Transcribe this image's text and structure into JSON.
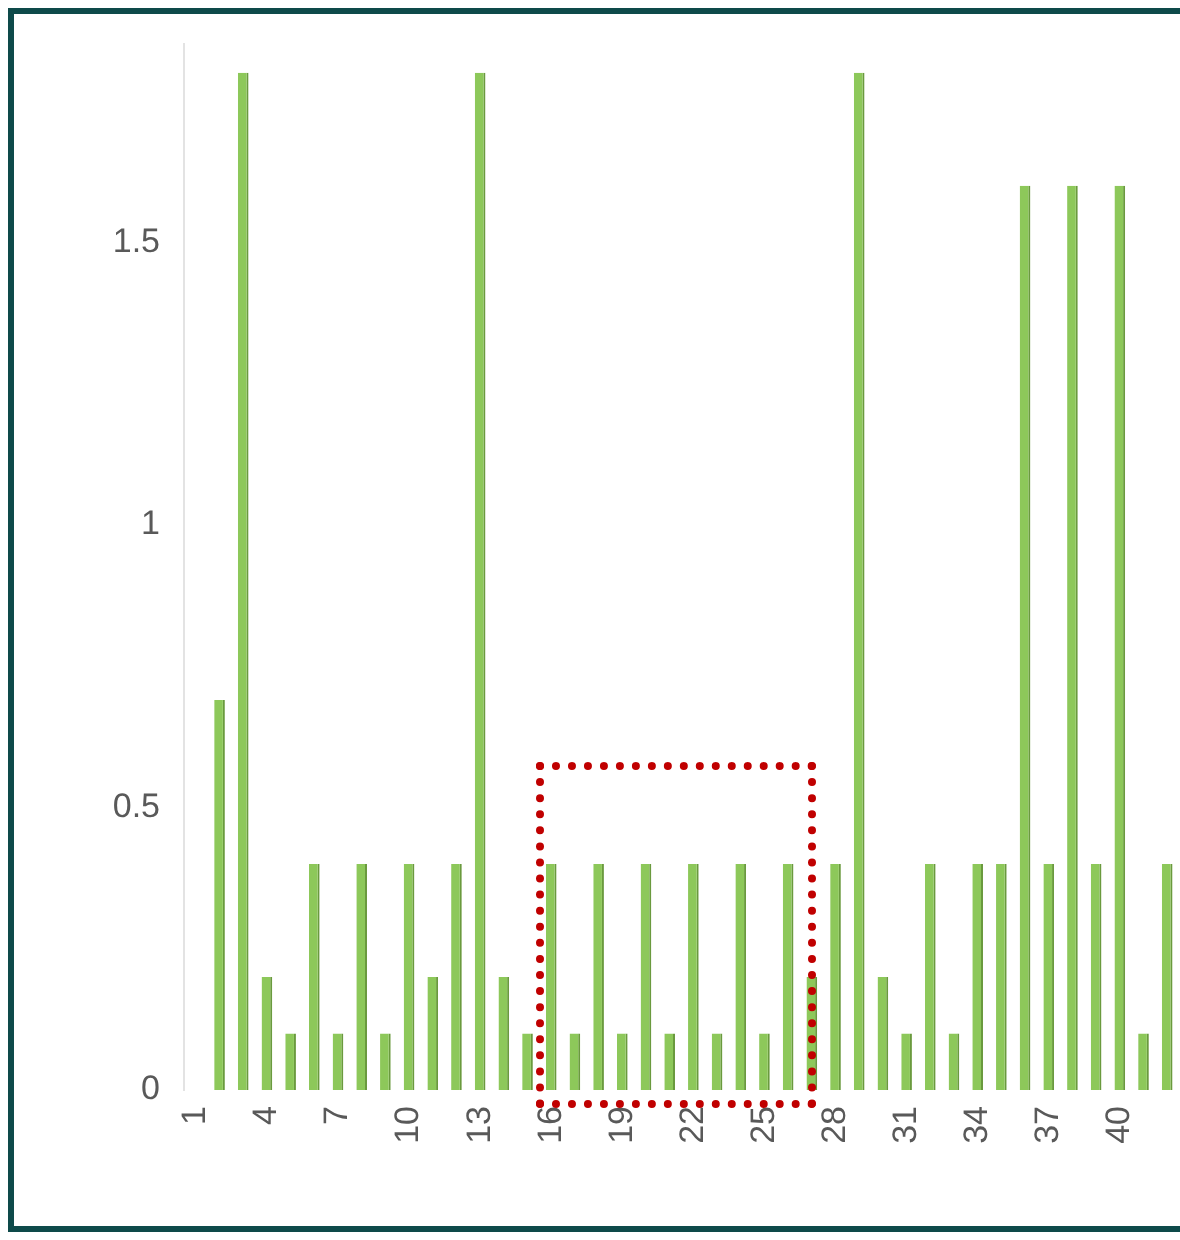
{
  "chart_data": {
    "type": "bar",
    "categories": [
      "1",
      null,
      null,
      "4",
      null,
      null,
      "7",
      null,
      null,
      "10",
      null,
      null,
      "13",
      null,
      null,
      "16",
      null,
      null,
      "19",
      null,
      null,
      "22",
      null,
      null,
      "25",
      null,
      null,
      "28",
      null,
      null,
      "31",
      null,
      null,
      "34",
      null,
      null,
      "37",
      null,
      null,
      "40",
      null,
      null
    ],
    "values": [
      0,
      0.69,
      1.8,
      0.2,
      0.1,
      0.4,
      0.1,
      0.4,
      0.1,
      0.4,
      0.2,
      0.4,
      1.8,
      0.2,
      0.1,
      0.4,
      0.1,
      0.4,
      0.1,
      0.4,
      0.1,
      0.4,
      0.1,
      0.4,
      0.1,
      0.4,
      0.2,
      0.4,
      1.8,
      0.2,
      0.1,
      0.4,
      0.1,
      0.4,
      0.4,
      1.6,
      0.4,
      1.6,
      0.4,
      1.6,
      0.1,
      0.4
    ],
    "color": "#8dc85a",
    "ylim": [
      0,
      1.85
    ],
    "yticks": [
      0,
      0.5,
      1,
      1.5
    ],
    "grid": false
  }
}
